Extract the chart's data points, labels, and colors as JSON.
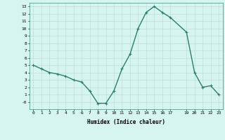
{
  "x": [
    0,
    1,
    2,
    3,
    4,
    5,
    6,
    7,
    8,
    9,
    10,
    11,
    12,
    13,
    14,
    15,
    16,
    17,
    19,
    20,
    21,
    22,
    23
  ],
  "y": [
    5,
    4.5,
    4,
    3.8,
    3.5,
    3,
    2.7,
    1.5,
    -0.2,
    -0.2,
    1.5,
    4.5,
    6.5,
    10,
    12.2,
    13,
    12.2,
    11.5,
    9.5,
    4,
    2,
    2.2,
    1
  ],
  "xlabel": "Humidex (Indice chaleur)",
  "line_color": "#2d7d6e",
  "marker": "+",
  "bg_color": "#d6f5f0",
  "grid_color": "#c0ddd8",
  "ylim": [
    -1,
    13.5
  ],
  "xlim": [
    -0.5,
    23.5
  ],
  "yticks": [
    0,
    1,
    2,
    3,
    4,
    5,
    6,
    7,
    8,
    9,
    10,
    11,
    12,
    13
  ],
  "ytick_labels": [
    "-0",
    "1",
    "2",
    "3",
    "4",
    "5",
    "6",
    "7",
    "8",
    "9",
    "10",
    "11",
    "12",
    "13"
  ],
  "xticks": [
    0,
    1,
    2,
    3,
    4,
    5,
    6,
    7,
    8,
    9,
    10,
    11,
    12,
    13,
    14,
    15,
    16,
    17,
    19,
    20,
    21,
    22,
    23
  ]
}
